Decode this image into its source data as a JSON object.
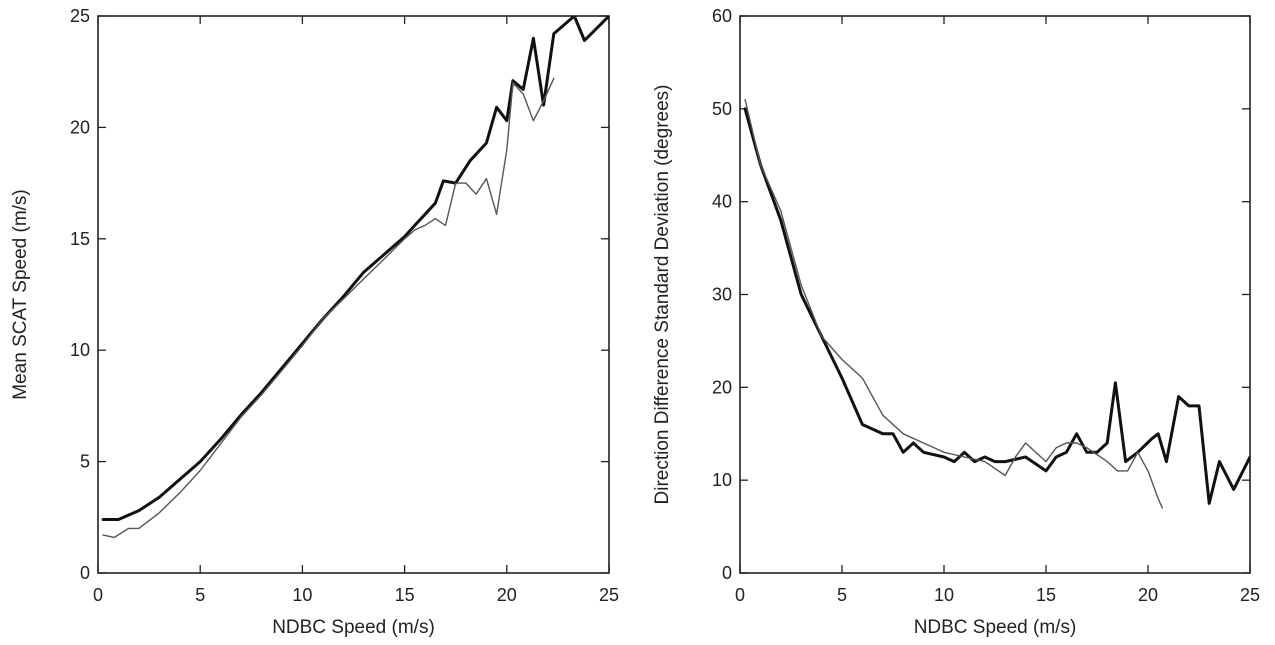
{
  "chart_data": [
    {
      "type": "line",
      "xlabel": "NDBC Speed (m/s)",
      "ylabel": "Mean SCAT Speed (m/s)",
      "xlim": [
        0,
        25
      ],
      "ylim": [
        0,
        25
      ],
      "xticks": [
        "0",
        "5",
        "10",
        "15",
        "20",
        "25"
      ],
      "yticks": [
        "0",
        "5",
        "10",
        "15",
        "20",
        "25"
      ],
      "grid": false,
      "series": [
        {
          "style": "thick",
          "color": "#111111",
          "points": [
            [
              0.25,
              2.4
            ],
            [
              1,
              2.4
            ],
            [
              2,
              2.8
            ],
            [
              3,
              3.4
            ],
            [
              4,
              4.2
            ],
            [
              5,
              5.0
            ],
            [
              6,
              6.0
            ],
            [
              7,
              7.1
            ],
            [
              8,
              8.1
            ],
            [
              9,
              9.2
            ],
            [
              10,
              10.3
            ],
            [
              11,
              11.4
            ],
            [
              12,
              12.4
            ],
            [
              13,
              13.5
            ],
            [
              14,
              14.3
            ],
            [
              15,
              15.1
            ],
            [
              15.5,
              15.6
            ],
            [
              16,
              16.1
            ],
            [
              16.5,
              16.6
            ],
            [
              16.9,
              17.6
            ],
            [
              17.5,
              17.5
            ],
            [
              18.2,
              18.5
            ],
            [
              19,
              19.3
            ],
            [
              19.5,
              20.9
            ],
            [
              20,
              20.3
            ],
            [
              20.3,
              22.1
            ],
            [
              20.8,
              21.7
            ],
            [
              21.3,
              24.0
            ],
            [
              21.8,
              21.0
            ],
            [
              22.3,
              24.2
            ],
            [
              23.3,
              25.0
            ],
            [
              23.8,
              23.9
            ],
            [
              25,
              25.0
            ]
          ]
        },
        {
          "style": "thin",
          "color": "#555555",
          "points": [
            [
              0.25,
              1.7
            ],
            [
              0.8,
              1.6
            ],
            [
              1.5,
              2.0
            ],
            [
              2,
              2.0
            ],
            [
              3,
              2.7
            ],
            [
              4,
              3.6
            ],
            [
              5,
              4.6
            ],
            [
              6,
              5.8
            ],
            [
              7,
              7.0
            ],
            [
              8,
              8.0
            ],
            [
              9,
              9.1
            ],
            [
              10,
              10.2
            ],
            [
              11,
              11.4
            ],
            [
              12,
              12.3
            ],
            [
              13,
              13.2
            ],
            [
              14,
              14.1
            ],
            [
              15,
              15.0
            ],
            [
              15.5,
              15.4
            ],
            [
              16,
              15.6
            ],
            [
              16.5,
              15.9
            ],
            [
              17,
              15.6
            ],
            [
              17.5,
              17.5
            ],
            [
              18,
              17.5
            ],
            [
              18.5,
              17.0
            ],
            [
              19,
              17.7
            ],
            [
              19.5,
              16.1
            ],
            [
              20,
              19.0
            ],
            [
              20.3,
              22.0
            ],
            [
              20.8,
              21.5
            ],
            [
              21.3,
              20.3
            ],
            [
              21.8,
              21.2
            ],
            [
              22.3,
              22.2
            ]
          ]
        }
      ]
    },
    {
      "type": "line",
      "xlabel": "NDBC Speed (m/s)",
      "ylabel": "Direction Difference Standard Deviation (degrees)",
      "xlim": [
        0,
        25
      ],
      "ylim": [
        0,
        60
      ],
      "xticks": [
        "0",
        "5",
        "10",
        "15",
        "20",
        "25"
      ],
      "yticks": [
        "0",
        "10",
        "20",
        "30",
        "40",
        "50",
        "60"
      ],
      "grid": false,
      "series": [
        {
          "style": "thick",
          "color": "#111111",
          "points": [
            [
              0.25,
              50
            ],
            [
              1,
              44
            ],
            [
              2,
              38
            ],
            [
              3,
              30
            ],
            [
              4,
              25.5
            ],
            [
              5,
              21
            ],
            [
              6,
              16
            ],
            [
              7,
              15
            ],
            [
              7.5,
              15
            ],
            [
              8,
              13
            ],
            [
              8.5,
              14
            ],
            [
              9,
              13
            ],
            [
              10,
              12.5
            ],
            [
              10.5,
              12
            ],
            [
              11,
              13
            ],
            [
              11.5,
              12
            ],
            [
              12,
              12.5
            ],
            [
              12.5,
              12
            ],
            [
              13,
              12
            ],
            [
              14,
              12.5
            ],
            [
              15,
              11
            ],
            [
              15.5,
              12.5
            ],
            [
              16,
              13
            ],
            [
              16.5,
              15
            ],
            [
              17,
              13
            ],
            [
              17.5,
              13
            ],
            [
              18,
              14
            ],
            [
              18.4,
              20.5
            ],
            [
              18.9,
              12
            ],
            [
              19.5,
              13
            ],
            [
              20.2,
              14.5
            ],
            [
              20.5,
              15
            ],
            [
              20.9,
              12
            ],
            [
              21.5,
              19
            ],
            [
              22,
              18
            ],
            [
              22.5,
              18
            ],
            [
              23,
              7.5
            ],
            [
              23.5,
              12
            ],
            [
              24.2,
              9
            ],
            [
              25,
              12.5
            ]
          ]
        },
        {
          "style": "thin",
          "color": "#555555",
          "points": [
            [
              0.25,
              51
            ],
            [
              1,
              44
            ],
            [
              2,
              39
            ],
            [
              3,
              31
            ],
            [
              4,
              25.5
            ],
            [
              5,
              23
            ],
            [
              6,
              21
            ],
            [
              7,
              17
            ],
            [
              8,
              15
            ],
            [
              9,
              14
            ],
            [
              10,
              13
            ],
            [
              11,
              12.5
            ],
            [
              12,
              12
            ],
            [
              13,
              10.5
            ],
            [
              13.5,
              12.5
            ],
            [
              14,
              14
            ],
            [
              15,
              12
            ],
            [
              15.5,
              13.5
            ],
            [
              16,
              14
            ],
            [
              16.5,
              14
            ],
            [
              17,
              13.5
            ],
            [
              18,
              12
            ],
            [
              18.5,
              11
            ],
            [
              19,
              11
            ],
            [
              19.5,
              13
            ],
            [
              20,
              11
            ],
            [
              20.5,
              8
            ],
            [
              20.7,
              7
            ]
          ]
        }
      ]
    }
  ]
}
